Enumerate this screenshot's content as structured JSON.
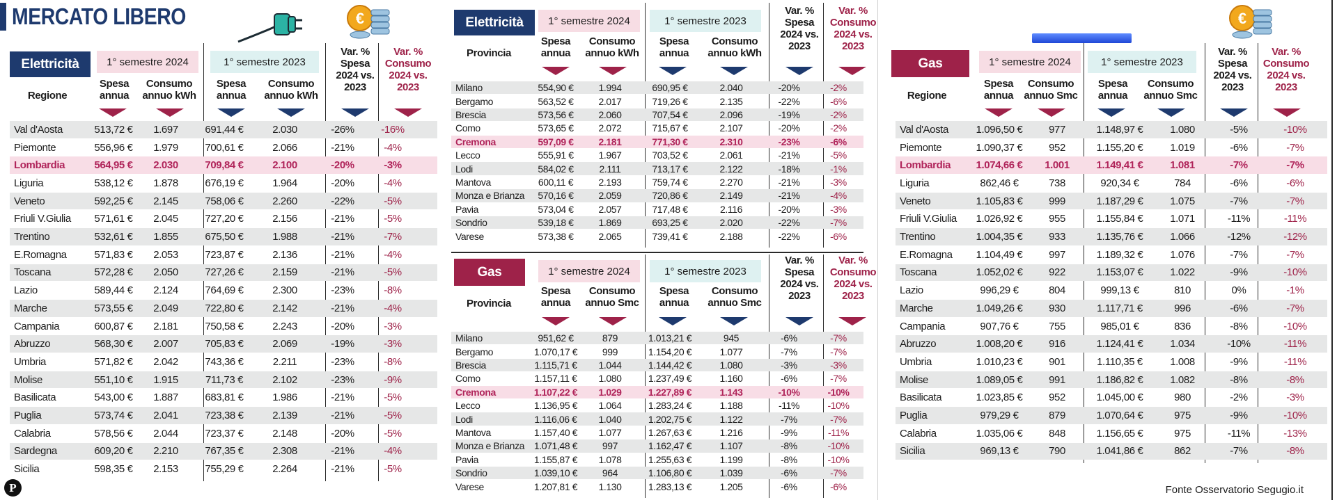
{
  "title": "MERCATO LIBERO",
  "source": "Fonte Osservatorio Segugio.it",
  "logo_letter": "P",
  "icons": [
    "electric-plug-icon",
    "euro-coins-icon",
    "gas-burner-icon"
  ],
  "colors": {
    "navy": "#1e3a6e",
    "wine": "#9e2249",
    "pink": "#f7dde4",
    "teal": "#def1f1",
    "highlight": "#f8dde6"
  },
  "headers": {
    "regione": "Regione",
    "provincia": "Provincia",
    "sem2024": "1° semestre 2024",
    "sem2023": "1° semestre 2023",
    "spesa": "Spesa annua",
    "consumo_kwh": "Consumo annuo kWh",
    "consumo_smc": "Consumo annuo Smc",
    "var_spesa": "Var. % Spesa 2024 vs. 2023",
    "var_consumo": "Var. % Consumo 2024 vs. 2023"
  },
  "tables": {
    "elec_region": {
      "label": "Elettricità",
      "rows": [
        [
          "Val d'Aosta",
          "513,72 €",
          "1.697",
          "691,44 €",
          "2.030",
          "-26%",
          "-16%"
        ],
        [
          "Piemonte",
          "556,96 €",
          "1.979",
          "700,61 €",
          "2.066",
          "-21%",
          "-4%"
        ],
        [
          "Lombardia",
          "564,95 €",
          "2.030",
          "709,84 €",
          "2.100",
          "-20%",
          "-3%"
        ],
        [
          "Liguria",
          "538,12 €",
          "1.878",
          "676,19 €",
          "1.964",
          "-20%",
          "-4%"
        ],
        [
          "Veneto",
          "592,25 €",
          "2.145",
          "758,06 €",
          "2.260",
          "-22%",
          "-5%"
        ],
        [
          "Friuli V.Giulia",
          "571,61 €",
          "2.045",
          "727,20 €",
          "2.156",
          "-21%",
          "-5%"
        ],
        [
          "Trentino",
          "532,61 €",
          "1.855",
          "675,50 €",
          "1.988",
          "-21%",
          "-7%"
        ],
        [
          "E.Romagna",
          "571,83 €",
          "2.053",
          "723,87 €",
          "2.136",
          "-21%",
          "-4%"
        ],
        [
          "Toscana",
          "572,28 €",
          "2.050",
          "727,26 €",
          "2.159",
          "-21%",
          "-5%"
        ],
        [
          "Lazio",
          "589,44 €",
          "2.124",
          "764,69 €",
          "2.300",
          "-23%",
          "-8%"
        ],
        [
          "Marche",
          "573,55 €",
          "2.049",
          "722,80 €",
          "2.142",
          "-21%",
          "-4%"
        ],
        [
          "Campania",
          "600,87 €",
          "2.181",
          "750,58 €",
          "2.243",
          "-20%",
          "-3%"
        ],
        [
          "Abruzzo",
          "568,30 €",
          "2.007",
          "705,83 €",
          "2.069",
          "-19%",
          "-3%"
        ],
        [
          "Umbria",
          "571,82 €",
          "2.042",
          "743,36 €",
          "2.211",
          "-23%",
          "-8%"
        ],
        [
          "Molise",
          "551,10 €",
          "1.915",
          "711,73 €",
          "2.102",
          "-23%",
          "-9%"
        ],
        [
          "Basilicata",
          "543,00 €",
          "1.887",
          "683,81 €",
          "1.986",
          "-21%",
          "-5%"
        ],
        [
          "Puglia",
          "573,74 €",
          "2.041",
          "723,38 €",
          "2.139",
          "-21%",
          "-5%"
        ],
        [
          "Calabria",
          "578,56 €",
          "2.044",
          "723,37 €",
          "2.148",
          "-20%",
          "-5%"
        ],
        [
          "Sardegna",
          "609,20 €",
          "2.210",
          "767,35 €",
          "2.308",
          "-21%",
          "-4%"
        ],
        [
          "Sicilia",
          "598,35 €",
          "2.153",
          "755,29 €",
          "2.264",
          "-21%",
          "-5%"
        ]
      ],
      "highlight": 2
    },
    "elec_prov": {
      "label": "Elettricità",
      "rows": [
        [
          "Milano",
          "554,90 €",
          "1.994",
          "690,95 €",
          "2.040",
          "-20%",
          "-2%"
        ],
        [
          "Bergamo",
          "563,52 €",
          "2.017",
          "719,26 €",
          "2.135",
          "-22%",
          "-6%"
        ],
        [
          "Brescia",
          "573,56 €",
          "2.060",
          "707,54 €",
          "2.096",
          "-19%",
          "-2%"
        ],
        [
          "Como",
          "573,65 €",
          "2.072",
          "715,67 €",
          "2.107",
          "-20%",
          "-2%"
        ],
        [
          "Cremona",
          "597,09 €",
          "2.181",
          "771,30 €",
          "2.310",
          "-23%",
          "-6%"
        ],
        [
          "Lecco",
          "555,91 €",
          "1.967",
          "703,52 €",
          "2.061",
          "-21%",
          "-5%"
        ],
        [
          "Lodi",
          "584,02 €",
          "2.111",
          "713,17 €",
          "2.122",
          "-18%",
          "-1%"
        ],
        [
          "Mantova",
          "600,11 €",
          "2.193",
          "759,74 €",
          "2.270",
          "-21%",
          "-3%"
        ],
        [
          "Monza e Brianza",
          "570,16 €",
          "2.059",
          "720,86 €",
          "2.149",
          "-21%",
          "-4%"
        ],
        [
          "Pavia",
          "573,04 €",
          "2.057",
          "717,48 €",
          "2.116",
          "-20%",
          "-3%"
        ],
        [
          "Sondrio",
          "539,18 €",
          "1.869",
          "693,25 €",
          "2.020",
          "-22%",
          "-7%"
        ],
        [
          "Varese",
          "573,38 €",
          "2.065",
          "739,41 €",
          "2.188",
          "-22%",
          "-6%"
        ]
      ],
      "highlight": 4
    },
    "gas_prov": {
      "label": "Gas",
      "rows": [
        [
          "Milano",
          "951,62 €",
          "879",
          "1.013,21 €",
          "945",
          "-6%",
          "-7%"
        ],
        [
          "Bergamo",
          "1.070,17 €",
          "999",
          "1.154,20 €",
          "1.077",
          "-7%",
          "-7%"
        ],
        [
          "Brescia",
          "1.115,71 €",
          "1.044",
          "1.144,42 €",
          "1.080",
          "-3%",
          "-3%"
        ],
        [
          "Como",
          "1.157,11 €",
          "1.080",
          "1.237,49 €",
          "1.160",
          "-6%",
          "-7%"
        ],
        [
          "Cremona",
          "1.107,22 €",
          "1.029",
          "1.227,89 €",
          "1.143",
          "-10%",
          "-10%"
        ],
        [
          "Lecco",
          "1.136,95 €",
          "1.064",
          "1.283,24 €",
          "1.188",
          "-11%",
          "-10%"
        ],
        [
          "Lodi",
          "1.116,06 €",
          "1.040",
          "1.202,75 €",
          "1.122",
          "-7%",
          "-7%"
        ],
        [
          "Mantova",
          "1.157,40 €",
          "1.077",
          "1.267,63 €",
          "1.216",
          "-9%",
          "-11%"
        ],
        [
          "Monza e Brianza",
          "1.071,48 €",
          "997",
          "1.162,47 €",
          "1.107",
          "-8%",
          "-10%"
        ],
        [
          "Pavia",
          "1.155,87 €",
          "1.078",
          "1.255,63 €",
          "1.199",
          "-8%",
          "-10%"
        ],
        [
          "Sondrio",
          "1.039,10 €",
          "964",
          "1.106,80 €",
          "1.039",
          "-6%",
          "-7%"
        ],
        [
          "Varese",
          "1.207,81 €",
          "1.130",
          "1.283,13 €",
          "1.205",
          "-6%",
          "-6%"
        ]
      ],
      "highlight": 4
    },
    "gas_region": {
      "label": "Gas",
      "rows": [
        [
          "Val d'Aosta",
          "1.096,50 €",
          "977",
          "1.148,97 €",
          "1.080",
          "-5%",
          "-10%"
        ],
        [
          "Piemonte",
          "1.090,37 €",
          "952",
          "1.155,20 €",
          "1.019",
          "-6%",
          "-7%"
        ],
        [
          "Lombardia",
          "1.074,66 €",
          "1.001",
          "1.149,41 €",
          "1.081",
          "-7%",
          "-7%"
        ],
        [
          "Liguria",
          "862,46 €",
          "738",
          "920,34 €",
          "784",
          "-6%",
          "-6%"
        ],
        [
          "Veneto",
          "1.105,83 €",
          "999",
          "1.187,29 €",
          "1.075",
          "-7%",
          "-7%"
        ],
        [
          "Friuli V.Giulia",
          "1.026,92 €",
          "955",
          "1.155,84 €",
          "1.071",
          "-11%",
          "-11%"
        ],
        [
          "Trentino",
          "1.004,35 €",
          "933",
          "1.135,76 €",
          "1.066",
          "-12%",
          "-12%"
        ],
        [
          "E.Romagna",
          "1.104,49 €",
          "997",
          "1.189,32 €",
          "1.076",
          "-7%",
          "-7%"
        ],
        [
          "Toscana",
          "1.052,02 €",
          "922",
          "1.153,07 €",
          "1.022",
          "-9%",
          "-10%"
        ],
        [
          "Lazio",
          "996,29 €",
          "804",
          "999,13 €",
          "810",
          "0%",
          "-1%"
        ],
        [
          "Marche",
          "1.049,26 €",
          "930",
          "1.117,71 €",
          "996",
          "-6%",
          "-7%"
        ],
        [
          "Campania",
          "907,76 €",
          "755",
          "985,01 €",
          "836",
          "-8%",
          "-10%"
        ],
        [
          "Abruzzo",
          "1.008,20 €",
          "916",
          "1.124,41 €",
          "1.034",
          "-10%",
          "-11%"
        ],
        [
          "Umbria",
          "1.010,23 €",
          "901",
          "1.110,35 €",
          "1.008",
          "-9%",
          "-11%"
        ],
        [
          "Molise",
          "1.089,05 €",
          "991",
          "1.186,82 €",
          "1.082",
          "-8%",
          "-8%"
        ],
        [
          "Basilicata",
          "1.023,85 €",
          "952",
          "1.045,00 €",
          "980",
          "-2%",
          "-3%"
        ],
        [
          "Puglia",
          "979,29 €",
          "879",
          "1.070,64 €",
          "975",
          "-9%",
          "-10%"
        ],
        [
          "Calabria",
          "1.035,06 €",
          "848",
          "1.156,65 €",
          "975",
          "-11%",
          "-13%"
        ],
        [
          "Sicilia",
          "969,13 €",
          "790",
          "1.041,86 €",
          "862",
          "-7%",
          "-8%"
        ]
      ],
      "highlight": 2
    }
  }
}
